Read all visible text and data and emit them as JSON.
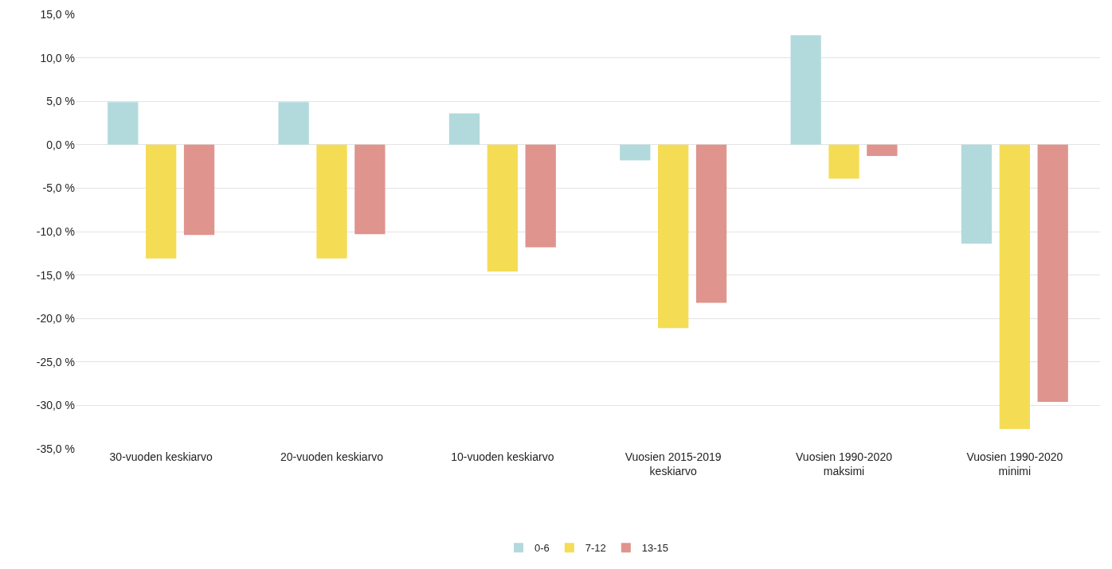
{
  "chart_data": {
    "type": "bar",
    "categories": [
      "30-vuoden keskiarvo",
      "20-vuoden keskiarvo",
      "10-vuoden keskiarvo",
      "Vuosien 2015-2019 keskiarvo",
      "Vuosien 1990-2020 maksimi",
      "Vuosien 1990-2020 minimi"
    ],
    "series": [
      {
        "name": "0-6",
        "color": "#b2dadd",
        "values": [
          4.9,
          4.9,
          3.6,
          -1.8,
          12.6,
          -11.4
        ]
      },
      {
        "name": "7-12",
        "color": "#f4dc55",
        "values": [
          -13.1,
          -13.1,
          -14.6,
          -21.1,
          -3.9,
          -32.7
        ]
      },
      {
        "name": "13-15",
        "color": "#df948d",
        "values": [
          -10.4,
          -10.3,
          -11.8,
          -18.2,
          -1.3,
          -29.6
        ]
      }
    ],
    "ylim": [
      -35,
      15
    ],
    "yticks": [
      {
        "value": -35,
        "label": "-35,0 %"
      },
      {
        "value": -30,
        "label": "-30,0 %"
      },
      {
        "value": -25,
        "label": "-25,0 %"
      },
      {
        "value": -20,
        "label": "-20,0 %"
      },
      {
        "value": -15,
        "label": "-15,0 %"
      },
      {
        "value": -10,
        "label": "-10,0 %"
      },
      {
        "value": -5,
        "label": "-5,0 %"
      },
      {
        "value": 0,
        "label": "0,0 %"
      },
      {
        "value": 5,
        "label": "5,0 %"
      },
      {
        "value": 10,
        "label": "10,0 %"
      },
      {
        "value": 15,
        "label": "15,0 %"
      }
    ],
    "grid": "y",
    "legend": "bottom"
  }
}
